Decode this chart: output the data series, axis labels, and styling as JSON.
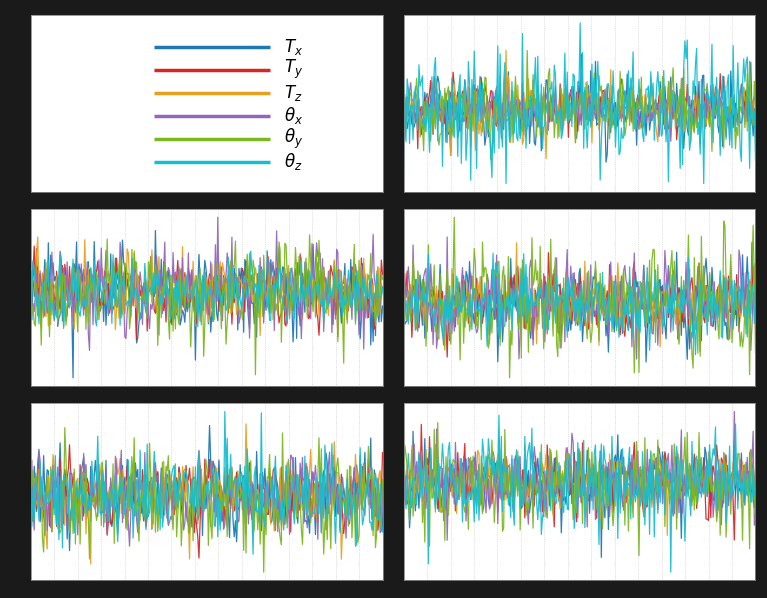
{
  "colors": [
    "#1f77b4",
    "#d62728",
    "#e8a020",
    "#9467bd",
    "#7db820",
    "#17becf"
  ],
  "legend_labels": [
    "$T_x$",
    "$T_y$",
    "$T_z$",
    "$\\theta_x$",
    "$\\theta_y$",
    "$\\theta_z$"
  ],
  "background_color": "#1a1a1a",
  "panel_bg": "#ffffff",
  "grid_color": "#bbbbbb",
  "line_width": 0.9,
  "n_points": 300
}
